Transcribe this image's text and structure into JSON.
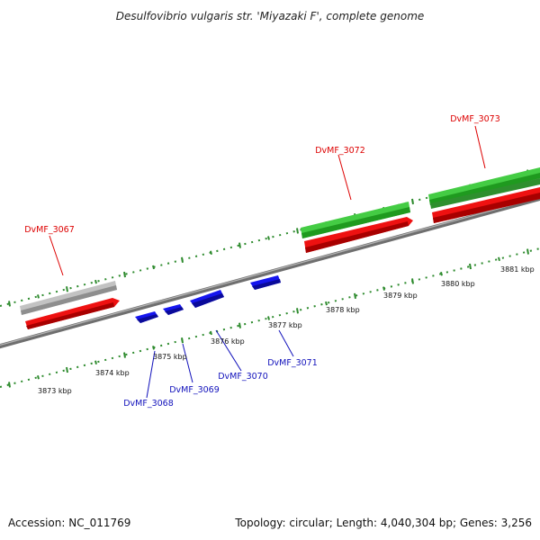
{
  "title": "Desulfovibrio vulgaris str. 'Miyazaki F', complete genome",
  "footer": {
    "accession": "Accession: NC_011769",
    "summary": "Topology: circular; Length: 4,040,304 bp; Genes: 3,256"
  },
  "colors": {
    "backbone": "#7a7a7a",
    "tick": "#2e8b2e",
    "label_forward": "#dd0000",
    "label_reverse": "#1111bb",
    "gene_grey": "#bdbdbd",
    "gene_red": "#ee1111",
    "gene_green": "#44cc44",
    "gene_blue": "#1515ee"
  },
  "ticks": [
    "3873 kbp",
    "3874 kbp",
    "3875 kbp",
    "3876 kbp",
    "3877 kbp",
    "3878 kbp",
    "3879 kbp",
    "3880 kbp",
    "3881 kbp"
  ],
  "genes_forward": [
    {
      "name": "DvMF_3067",
      "color": "red"
    },
    {
      "name": "DvMF_3072",
      "color": "red"
    },
    {
      "name": "DvMF_3073",
      "color": "red"
    }
  ],
  "genes_reverse": [
    {
      "name": "DvMF_3068",
      "color": "blue"
    },
    {
      "name": "DvMF_3069",
      "color": "blue"
    },
    {
      "name": "DvMF_3070",
      "color": "blue"
    },
    {
      "name": "DvMF_3071",
      "color": "blue"
    }
  ]
}
